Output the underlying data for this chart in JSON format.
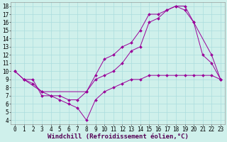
{
  "xlabel": "Windchill (Refroidissement éolien,°C)",
  "background_color": "#cff0eb",
  "line_color": "#990099",
  "grid_color": "#aadddd",
  "xlim": [
    -0.5,
    23.5
  ],
  "ylim": [
    3.5,
    18.5
  ],
  "xticks": [
    0,
    1,
    2,
    3,
    4,
    5,
    6,
    7,
    8,
    9,
    10,
    11,
    12,
    13,
    14,
    15,
    16,
    17,
    18,
    19,
    20,
    21,
    22,
    23
  ],
  "yticks": [
    4,
    5,
    6,
    7,
    8,
    9,
    10,
    11,
    12,
    13,
    14,
    15,
    16,
    17,
    18
  ],
  "line1_x": [
    0,
    1,
    3,
    8,
    9,
    10,
    11,
    12,
    13,
    14,
    15,
    16,
    17,
    18,
    19,
    20,
    22,
    23
  ],
  "line1_y": [
    10,
    9,
    7.5,
    7.5,
    9.5,
    11.5,
    12,
    13,
    13.5,
    15,
    17,
    17,
    17.5,
    18,
    18,
    16,
    12,
    9
  ],
  "line2_x": [
    0,
    1,
    2,
    3,
    4,
    5,
    6,
    7,
    8,
    9,
    10,
    11,
    12,
    13,
    14,
    15,
    16,
    17,
    18,
    19,
    20,
    21,
    22,
    23
  ],
  "line2_y": [
    10,
    9,
    9,
    7,
    7,
    6.5,
    6,
    5.5,
    4,
    6.5,
    7.5,
    8,
    8.5,
    9,
    9,
    9.5,
    9.5,
    9.5,
    9.5,
    9.5,
    9.5,
    9.5,
    9.5,
    9
  ],
  "line3_x": [
    1,
    2,
    3,
    4,
    5,
    6,
    7,
    8,
    9,
    10,
    11,
    12,
    13,
    14,
    15,
    16,
    17,
    18,
    19,
    20,
    21,
    22,
    23
  ],
  "line3_y": [
    9,
    8.5,
    7.5,
    7,
    7,
    6.5,
    6.5,
    7.5,
    9,
    9.5,
    10,
    11,
    12.5,
    13,
    16,
    16.5,
    17.5,
    18,
    17.5,
    16,
    12,
    11,
    9
  ],
  "tick_fontsize": 5.5,
  "xlabel_fontsize": 6.5
}
